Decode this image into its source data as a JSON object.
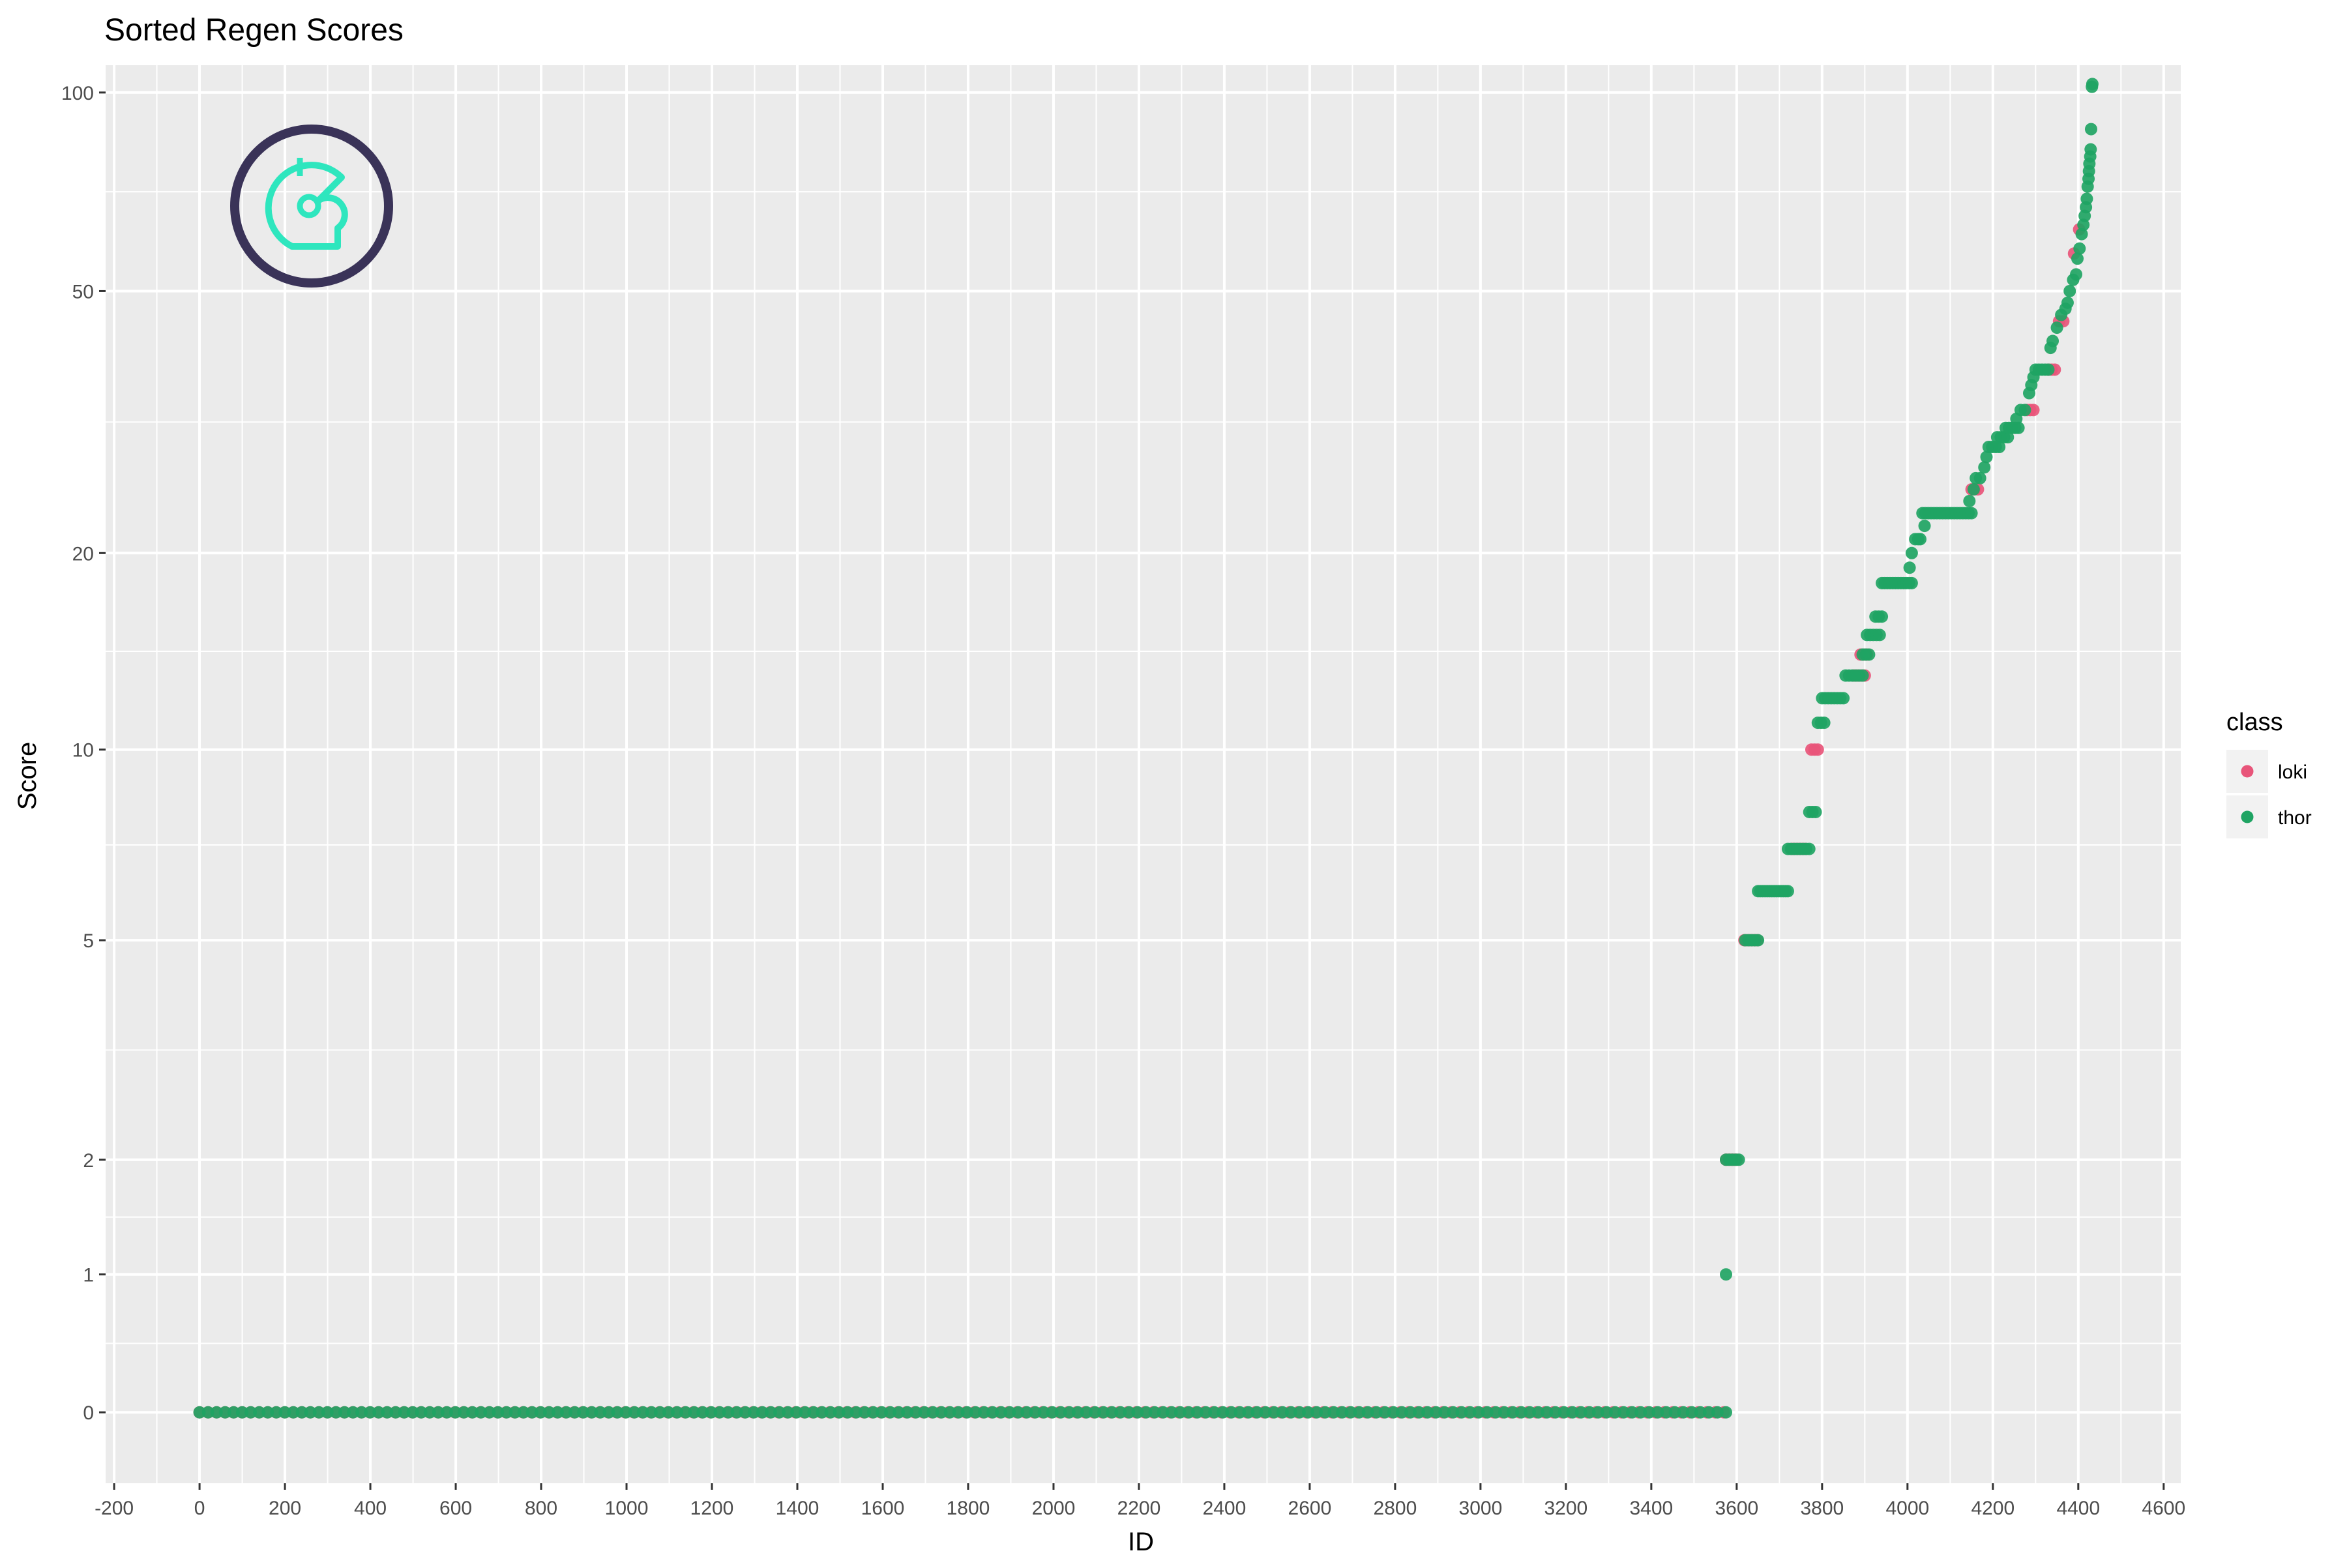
{
  "chart_data": {
    "type": "scatter",
    "title": "Sorted Regen Scores",
    "xlabel": "ID",
    "ylabel": "Score",
    "xlim": [
      -220,
      4640
    ],
    "y_scale": "pseudo-log",
    "ylim": [
      -0.5,
      110
    ],
    "x_ticks": [
      -200,
      0,
      200,
      400,
      600,
      800,
      1000,
      1200,
      1400,
      1600,
      1800,
      2000,
      2200,
      2400,
      2600,
      2800,
      3000,
      3200,
      3400,
      3600,
      3800,
      4000,
      4200,
      4400,
      4600
    ],
    "x_tick_labels": [
      "-200",
      "0",
      "200",
      "400",
      "600",
      "800",
      "1000",
      "1200",
      "1400",
      "1600",
      "1800",
      "2000",
      "2200",
      "2400",
      "2600",
      "2800",
      "3000",
      "3200",
      "3400",
      "3600",
      "3800",
      "4000",
      "4200",
      "4400",
      "4600"
    ],
    "y_ticks": [
      0,
      1,
      2,
      5,
      10,
      20,
      50,
      100
    ],
    "y_tick_labels": [
      "0",
      "1",
      "2",
      "5",
      "10",
      "20",
      "50",
      "100"
    ],
    "grid": true,
    "legend": {
      "title": "class",
      "position": "right",
      "entries": [
        {
          "label": "loki",
          "color": "#E8557A"
        },
        {
          "label": "thor",
          "color": "#1FA463"
        }
      ]
    },
    "colors": {
      "loki": "#E8557A",
      "thor": "#1FA463",
      "panel": "#EBEBEB",
      "grid": "#FFFFFF",
      "logo_ring": "#3A3358",
      "logo_mark": "#2EE6BE"
    },
    "logo_icon": "helmet-logo-icon",
    "series": [
      {
        "name": "loki",
        "segments": [
          {
            "x": [
              0,
              3570
            ],
            "y": 0,
            "n": 180
          },
          {
            "x": [
              3575,
              3600
            ],
            "y": 2,
            "n": 6
          },
          {
            "x": [
              3618,
              3648
            ],
            "y": 5,
            "n": 6
          },
          {
            "x": [
              3730,
              3760
            ],
            "y": 7,
            "n": 6
          },
          {
            "x": [
              3775,
              3790
            ],
            "y": 10,
            "n": 3
          },
          {
            "x": [
              3875,
              3900
            ],
            "y": 13,
            "n": 4
          },
          {
            "x": [
              3890,
              3905
            ],
            "y": 14,
            "n": 3
          },
          {
            "x": [
              4150,
              4165
            ],
            "y": 25,
            "n": 3
          },
          {
            "x": [
              4280,
              4295
            ],
            "y": 33,
            "n": 3
          },
          {
            "x": [
              4330,
              4345
            ],
            "y": 38,
            "n": 3
          },
          {
            "x": [
              4355,
              4365
            ],
            "y": 45,
            "n": 2
          }
        ],
        "points": [
          [
            4390,
            57
          ],
          [
            4402,
            62
          ]
        ]
      },
      {
        "name": "thor",
        "segments": [
          {
            "x": [
              0,
              3575
            ],
            "y": 0,
            "n": 180
          },
          {
            "x": [
              3575,
              3605
            ],
            "y": 2,
            "n": 5
          },
          {
            "x": [
              3620,
              3650
            ],
            "y": 5,
            "n": 5
          },
          {
            "x": [
              3650,
              3720
            ],
            "y": 6,
            "n": 14
          },
          {
            "x": [
              3720,
              3770
            ],
            "y": 7,
            "n": 8
          },
          {
            "x": [
              3770,
              3785
            ],
            "y": 8,
            "n": 3
          },
          {
            "x": [
              3790,
              3805
            ],
            "y": 11,
            "n": 3
          },
          {
            "x": [
              3800,
              3850
            ],
            "y": 12,
            "n": 8
          },
          {
            "x": [
              3855,
              3895
            ],
            "y": 13,
            "n": 6
          },
          {
            "x": [
              3895,
              3910
            ],
            "y": 14,
            "n": 3
          },
          {
            "x": [
              3905,
              3935
            ],
            "y": 15,
            "n": 5
          },
          {
            "x": [
              3925,
              3940
            ],
            "y": 16,
            "n": 3
          },
          {
            "x": [
              3940,
              4010
            ],
            "y": 18,
            "n": 12
          },
          {
            "x": [
              4035,
              4150
            ],
            "y": 23,
            "n": 18
          },
          {
            "x": [
              4190,
              4215
            ],
            "y": 29,
            "n": 4
          },
          {
            "x": [
              4210,
              4235
            ],
            "y": 30,
            "n": 4
          },
          {
            "x": [
              4230,
              4260
            ],
            "y": 31,
            "n": 5
          },
          {
            "x": [
              4300,
              4330
            ],
            "y": 38,
            "n": 5
          }
        ],
        "points": [
          [
            3575,
            1
          ],
          [
            4005,
            19
          ],
          [
            4010,
            20
          ],
          [
            4018,
            21
          ],
          [
            4025,
            21
          ],
          [
            4030,
            21
          ],
          [
            4040,
            22
          ],
          [
            4145,
            24
          ],
          [
            4155,
            25
          ],
          [
            4160,
            26
          ],
          [
            4170,
            26
          ],
          [
            4180,
            27
          ],
          [
            4185,
            28
          ],
          [
            4255,
            32
          ],
          [
            4265,
            33
          ],
          [
            4275,
            33
          ],
          [
            4285,
            35
          ],
          [
            4290,
            36
          ],
          [
            4295,
            37
          ],
          [
            4335,
            41
          ],
          [
            4340,
            42
          ],
          [
            4350,
            44
          ],
          [
            4360,
            46
          ],
          [
            4370,
            47
          ],
          [
            4375,
            48
          ],
          [
            4380,
            50
          ],
          [
            4388,
            52
          ],
          [
            4395,
            53
          ],
          [
            4398,
            56
          ],
          [
            4403,
            58
          ],
          [
            4408,
            61
          ],
          [
            4412,
            63
          ],
          [
            4415,
            65
          ],
          [
            4418,
            67
          ],
          [
            4420,
            69
          ],
          [
            4422,
            72
          ],
          [
            4424,
            74
          ],
          [
            4425,
            76
          ],
          [
            4426,
            78
          ],
          [
            4428,
            80
          ],
          [
            4429,
            82
          ],
          [
            4430,
            88
          ],
          [
            4432,
            102
          ],
          [
            4433,
            103
          ]
        ]
      }
    ]
  }
}
